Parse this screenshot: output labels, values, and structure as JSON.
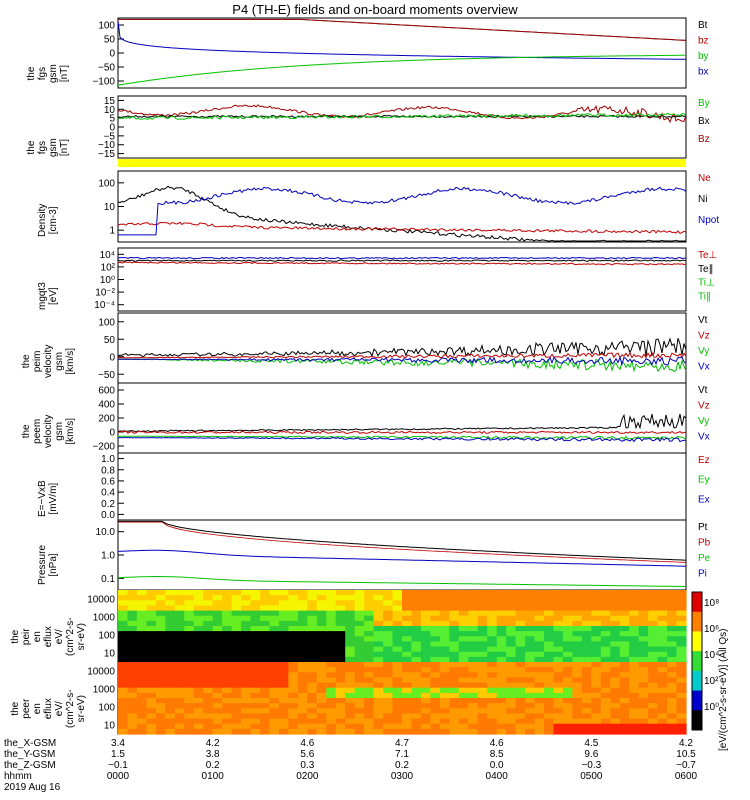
{
  "title": "P4 (TH-E) fields and on-board moments overview",
  "chart_data": [
    {
      "type": "line",
      "ylabel": "the fgs gsm [nT]",
      "ylim": [
        -100,
        100
      ],
      "ticks": [
        "100",
        "50",
        "0",
        "−50",
        "−100"
      ],
      "series": [
        {
          "name": "Bt",
          "color": "#000000"
        },
        {
          "name": "bz",
          "color": "#c00000"
        },
        {
          "name": "by",
          "color": "#00c000"
        },
        {
          "name": "bx",
          "color": "#0000c0"
        }
      ]
    },
    {
      "type": "line",
      "ylabel": "the fgs gsm [nT]",
      "ylim": [
        -17,
        12
      ],
      "ticks": [
        "15",
        "10",
        "5",
        "0",
        "−5",
        "−10",
        "−15"
      ],
      "series": [
        {
          "name": "By",
          "color": "#00c000"
        },
        {
          "name": "Bx",
          "color": "#000000"
        },
        {
          "name": "Bz",
          "color": "#a00000"
        }
      ]
    },
    {
      "type": "line",
      "ylabel": "Density [cm-3]",
      "scale": "log",
      "ylim": [
        0.6,
        200
      ],
      "ticks": [
        "100",
        "10",
        "1"
      ],
      "series": [
        {
          "name": "Ne",
          "color": "#c00000"
        },
        {
          "name": "Ni",
          "color": "#000000"
        },
        {
          "name": "Npot",
          "color": "#0000c0"
        }
      ]
    },
    {
      "type": "line",
      "ylabel": "mgqt3 [eV]",
      "scale": "log",
      "ticks": [
        "10⁴",
        "10²",
        "10⁰",
        "10⁻²",
        "10⁻⁴"
      ],
      "series": [
        {
          "name": "Te⊥",
          "color": "#c00000"
        },
        {
          "name": "Te∥",
          "color": "#000000"
        },
        {
          "name": "Ti⊥",
          "color": "#00c000"
        },
        {
          "name": "Ti∥",
          "color": "#00c000"
        }
      ]
    },
    {
      "type": "line",
      "ylabel": "the peim velocity gsm [km/s]",
      "ylim": [
        -50,
        100
      ],
      "ticks": [
        "100",
        "50",
        "0",
        "−50"
      ],
      "series": [
        {
          "name": "Vt",
          "color": "#000000"
        },
        {
          "name": "Vz",
          "color": "#c00000"
        },
        {
          "name": "Vy",
          "color": "#00c000"
        },
        {
          "name": "Vx",
          "color": "#0000c0"
        }
      ]
    },
    {
      "type": "line",
      "ylabel": "the peem velocity gsm [km/s]",
      "ylim": [
        -200,
        600
      ],
      "ticks": [
        "600",
        "400",
        "200",
        "0",
        "−200"
      ],
      "series": [
        {
          "name": "Vt",
          "color": "#000000"
        },
        {
          "name": "Vz",
          "color": "#c00000"
        },
        {
          "name": "Vy",
          "color": "#00c000"
        },
        {
          "name": "Vx",
          "color": "#0000c0"
        }
      ]
    },
    {
      "type": "line",
      "ylabel": "E=−VxB [mV/m]",
      "ylim": [
        0,
        1
      ],
      "ticks": [
        "1.0",
        "0.8",
        "0.6",
        "0.4",
        "0.2",
        "0.0"
      ],
      "series": [
        {
          "name": "Ez",
          "color": "#c00000"
        },
        {
          "name": "Ey",
          "color": "#00c000"
        },
        {
          "name": "Ex",
          "color": "#0000c0"
        }
      ]
    },
    {
      "type": "line",
      "ylabel": "Pressure [nPa]",
      "scale": "log",
      "ylim": [
        0.05,
        15
      ],
      "ticks": [
        "10.0",
        "1.0",
        "0.1"
      ],
      "series": [
        {
          "name": "Pt",
          "color": "#000000"
        },
        {
          "name": "Pb",
          "color": "#c00000"
        },
        {
          "name": "Pe",
          "color": "#00c000"
        },
        {
          "name": "Pi",
          "color": "#0000c0"
        }
      ]
    },
    {
      "type": "heatmap",
      "ylabel": "the peir en eflux eV/(cm^2-s-sr-eV)",
      "scale": "log",
      "ticks": [
        "10000",
        "1000",
        "100",
        "10"
      ]
    },
    {
      "type": "heatmap",
      "ylabel": "the peer en eflux eV/(cm^2-s-sr-eV)",
      "scale": "log",
      "ticks": [
        "10000",
        "1000",
        "100",
        "10"
      ]
    }
  ],
  "colorbar": {
    "ticks": [
      "10⁸",
      "10⁶",
      "10⁴",
      "10²",
      "10⁰"
    ],
    "label": "[eV/(cm^2-s-sr-eV)] (All Qs)"
  },
  "ephemeris": {
    "labels": [
      "the_X-GSM",
      "the_Y-GSM",
      "the_Z-GSM",
      "hhmm",
      "2019 Aug 16"
    ],
    "columns": [
      [
        "3.4",
        "1.5",
        "−0.1",
        "0000"
      ],
      [
        "4.2",
        "3.8",
        "0.2",
        "0100"
      ],
      [
        "4.6",
        "5.6",
        "0.3",
        "0200"
      ],
      [
        "4.7",
        "7.1",
        "0.2",
        "0300"
      ],
      [
        "4.6",
        "8.5",
        "0.0",
        "0400"
      ],
      [
        "4.5",
        "9.6",
        "−0.3",
        "0500"
      ],
      [
        "4.2",
        "10.5",
        "−0.7",
        "0600"
      ]
    ]
  }
}
